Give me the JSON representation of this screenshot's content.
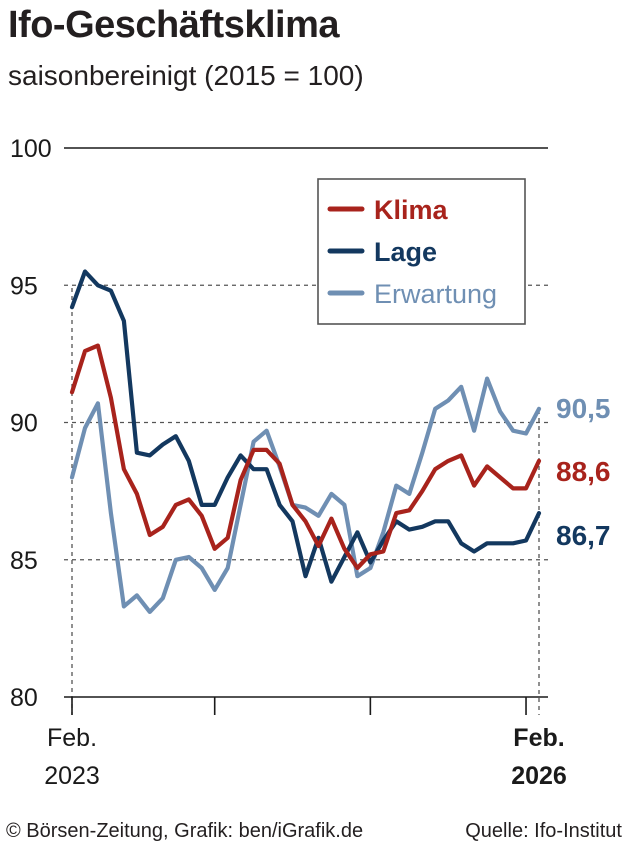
{
  "title": "Ifo-Geschäftsklima",
  "subtitle": "saisonbereinigt (2015 = 100)",
  "footer": {
    "credit": "© Börsen-Zeitung, Grafik: ben/iGrafik.de",
    "source": "Quelle: Ifo-Institut"
  },
  "colors": {
    "klima": "#a8231c",
    "lage": "#13385f",
    "erwartung": "#6f8fb3",
    "axis": "#1a1a1a",
    "grid": "#555555"
  },
  "chart_data": {
    "type": "line",
    "title": "Ifo-Geschäftsklima",
    "subtitle": "saisonbereinigt (2015 = 100)",
    "ylim": [
      80,
      100
    ],
    "yticks": [
      80,
      85,
      90,
      95,
      100
    ],
    "grid": "dashed at 85, 90, 95",
    "x_start_label": [
      "Feb.",
      "2023"
    ],
    "x_end_label": [
      "Feb.",
      "2026"
    ],
    "x_count": 37,
    "legend": {
      "position": "top-right",
      "entries": [
        "Klima",
        "Lage",
        "Erwartung"
      ]
    },
    "series": [
      {
        "name": "Klima",
        "end_label": "88,6",
        "values": [
          91.1,
          92.6,
          92.8,
          90.9,
          88.3,
          87.4,
          85.9,
          86.2,
          87.0,
          87.2,
          86.6,
          85.4,
          85.8,
          87.9,
          89.0,
          89.0,
          88.5,
          87.0,
          86.4,
          85.5,
          86.5,
          85.4,
          84.7,
          85.2,
          85.3,
          86.7,
          86.8,
          87.5,
          88.3,
          88.6,
          88.8,
          87.7,
          88.4,
          88.0,
          87.6,
          87.6,
          88.6
        ]
      },
      {
        "name": "Lage",
        "end_label": "86,7",
        "values": [
          94.2,
          95.5,
          95.0,
          94.8,
          93.7,
          88.9,
          88.8,
          89.2,
          89.5,
          88.6,
          87.0,
          87.0,
          88.0,
          88.8,
          88.3,
          88.3,
          87.0,
          86.4,
          84.4,
          85.8,
          84.2,
          85.1,
          86.0,
          84.9,
          85.7,
          86.4,
          86.1,
          86.2,
          86.4,
          86.4,
          85.6,
          85.3,
          85.6,
          85.6,
          85.6,
          85.7,
          86.7
        ]
      },
      {
        "name": "Erwartung",
        "end_label": "90,5",
        "values": [
          88.0,
          89.8,
          90.7,
          86.7,
          83.3,
          83.7,
          83.1,
          83.6,
          85.0,
          85.1,
          84.7,
          83.9,
          84.7,
          87.0,
          89.3,
          89.7,
          88.4,
          87.0,
          86.9,
          86.6,
          87.4,
          87.0,
          84.4,
          84.7,
          86.0,
          87.7,
          87.4,
          88.9,
          90.5,
          90.8,
          91.3,
          89.7,
          91.6,
          90.4,
          89.7,
          89.6,
          90.5
        ]
      }
    ]
  }
}
